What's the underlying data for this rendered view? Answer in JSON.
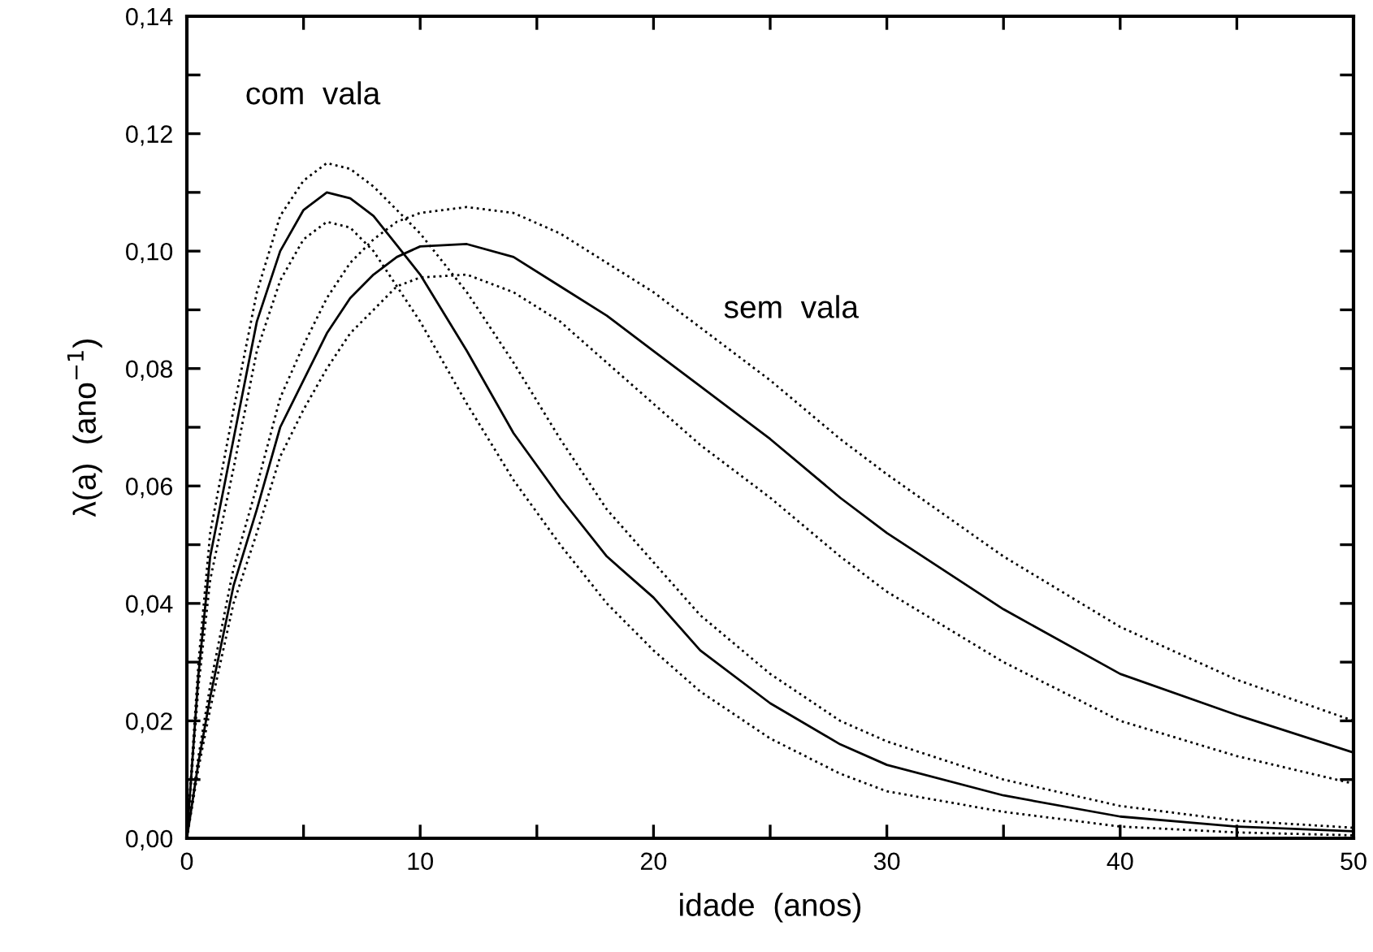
{
  "chart_data": {
    "type": "line",
    "xlabel": "idade  (anos)",
    "ylabel": "λ(a)  (ano$^{−1}$)",
    "x": [
      0,
      0.5,
      1,
      2,
      3,
      4,
      5,
      6,
      7,
      8,
      9,
      10,
      12,
      14,
      16,
      18,
      20,
      22,
      25,
      28,
      30,
      35,
      40,
      45,
      50
    ],
    "series": [
      {
        "color": "#000000",
        "line_style": "solid",
        "values": [
          0,
          0.028,
          0.048,
          0.068,
          0.088,
          0.1,
          0.107,
          0.11,
          0.109,
          0.106,
          0.101,
          0.096,
          0.083,
          0.069,
          0.058,
          0.048,
          0.041,
          0.032,
          0.023,
          0.016,
          0.0125,
          0.0073,
          0.0037,
          0.002,
          0.0012
        ]
      },
      {
        "color": "#000000",
        "line_style": "dotted",
        "values": [
          0,
          0.03,
          0.052,
          0.073,
          0.093,
          0.106,
          0.112,
          0.115,
          0.114,
          0.111,
          0.107,
          0.103,
          0.093,
          0.081,
          0.068,
          0.056,
          0.047,
          0.038,
          0.028,
          0.02,
          0.0165,
          0.01,
          0.0055,
          0.003,
          0.0018
        ]
      },
      {
        "color": "#000000",
        "line_style": "dotted",
        "values": [
          0,
          0.026,
          0.044,
          0.063,
          0.083,
          0.095,
          0.102,
          0.105,
          0.104,
          0.1,
          0.094,
          0.088,
          0.074,
          0.061,
          0.05,
          0.04,
          0.032,
          0.025,
          0.017,
          0.011,
          0.008,
          0.0045,
          0.002,
          0.001,
          0.0005
        ]
      },
      {
        "color": "#000000",
        "line_style": "solid",
        "values": [
          0,
          0.013,
          0.024,
          0.043,
          0.056,
          0.07,
          0.078,
          0.086,
          0.092,
          0.096,
          0.099,
          0.1008,
          0.1012,
          0.099,
          0.094,
          0.089,
          0.083,
          0.077,
          0.068,
          0.058,
          0.052,
          0.039,
          0.028,
          0.021,
          0.0146
        ]
      },
      {
        "color": "#000000",
        "line_style": "dotted",
        "values": [
          0,
          0.014,
          0.026,
          0.046,
          0.06,
          0.075,
          0.084,
          0.092,
          0.098,
          0.102,
          0.105,
          0.1065,
          0.1075,
          0.1065,
          0.103,
          0.098,
          0.093,
          0.087,
          0.078,
          0.068,
          0.062,
          0.048,
          0.036,
          0.027,
          0.02
        ]
      },
      {
        "color": "#000000",
        "line_style": "dotted",
        "values": [
          0,
          0.012,
          0.022,
          0.04,
          0.052,
          0.065,
          0.073,
          0.08,
          0.086,
          0.09,
          0.094,
          0.0955,
          0.096,
          0.093,
          0.088,
          0.081,
          0.074,
          0.067,
          0.058,
          0.048,
          0.042,
          0.03,
          0.02,
          0.014,
          0.0093
        ]
      }
    ],
    "annotations": [
      "com  vala",
      "sem  vala"
    ],
    "xlim": [
      0,
      50
    ],
    "ylim": [
      0,
      0.14
    ],
    "xticks": [
      0,
      {
        "value": 5,
        "label": null
      },
      10,
      {
        "value": 15,
        "label": null
      },
      20,
      {
        "value": 25,
        "label": null
      },
      30,
      {
        "value": 35,
        "label": null
      },
      40,
      {
        "value": 45,
        "label": null
      },
      50
    ],
    "yticks": [
      {
        "value": 0,
        "label": "0,00"
      },
      {
        "value": 0.01,
        "label": null
      },
      {
        "value": 0.02,
        "label": "0,02"
      },
      {
        "value": 0.03,
        "label": null
      },
      {
        "value": 0.04,
        "label": "0,04"
      },
      {
        "value": 0.05,
        "label": null
      },
      {
        "value": 0.06,
        "label": "0,06"
      },
      {
        "value": 0.07,
        "label": null
      },
      {
        "value": 0.08,
        "label": "0,08"
      },
      {
        "value": 0.09,
        "label": null
      },
      {
        "value": 0.1,
        "label": "0,10"
      },
      {
        "value": 0.11,
        "label": null
      },
      {
        "value": 0.12,
        "label": "0,12"
      },
      {
        "value": 0.13,
        "label": null
      },
      {
        "value": 0.14,
        "label": "0,14"
      }
    ],
    "grid": false,
    "legend": false,
    "marker": "none"
  }
}
